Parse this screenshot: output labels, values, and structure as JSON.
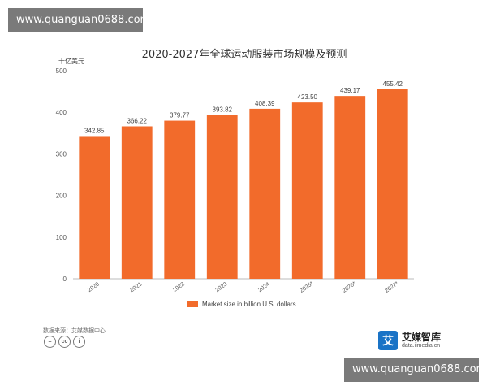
{
  "watermark": "www.quanguan0688.com",
  "chart_data": {
    "type": "bar",
    "title": "2020-2027年全球运动服装市场规模及预测",
    "unit_label": "十亿美元",
    "categories": [
      "2020",
      "2021",
      "2022",
      "2023",
      "2024",
      "2025*",
      "2026*",
      "2027*"
    ],
    "series": [
      {
        "name": "Market size in billion U.S. dollars",
        "values": [
          342.85,
          366.22,
          379.77,
          393.82,
          408.39,
          423.5,
          439.17,
          455.42
        ],
        "labels": [
          "342.85",
          "366.22",
          "379.77",
          "393.82",
          "408.39",
          "423.50",
          "439.17",
          "455.42"
        ]
      }
    ],
    "ylim": [
      0,
      500
    ],
    "yticks": [
      "0",
      "100",
      "200",
      "300",
      "400",
      "500"
    ],
    "grid": false,
    "legend_position": "bottom",
    "bar_color": "#f26b2b"
  },
  "footer": {
    "source": "数据来源：艾媒数据中心",
    "brand_name": "艾媒智库",
    "brand_url": "data.iimedia.cn",
    "brand_logo_char": "艾",
    "cc_icons": [
      "=",
      "cc",
      "i"
    ]
  }
}
